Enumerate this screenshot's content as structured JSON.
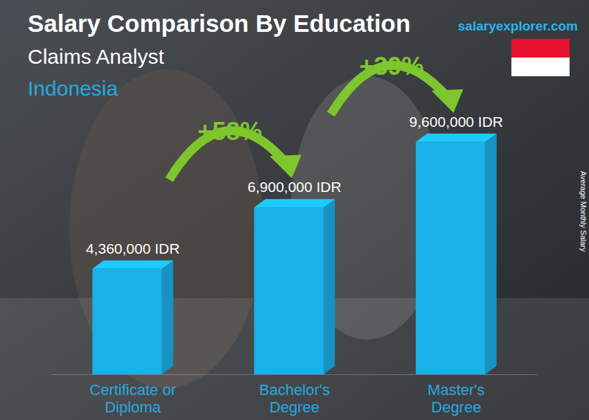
{
  "chart_data": {
    "type": "bar",
    "title": "Salary Comparison By Education",
    "subtitle": "Claims Analyst",
    "location": "Indonesia",
    "source": "salaryexplorer.com",
    "ylabel": "Average Monthly Salary",
    "categories": [
      "Certificate or Diploma",
      "Bachelor's Degree",
      "Master's Degree"
    ],
    "values": [
      4360000,
      6900000,
      9600000
    ],
    "value_labels": [
      "4,360,000 IDR",
      "6,900,000 IDR",
      "9,600,000 IDR"
    ],
    "annotations": [
      "+58%",
      "+39%"
    ],
    "color": "#1ab0e8",
    "ylim": [
      0,
      11000000
    ],
    "data_labels": true,
    "tick_labels": "x",
    "grid": false
  }
}
